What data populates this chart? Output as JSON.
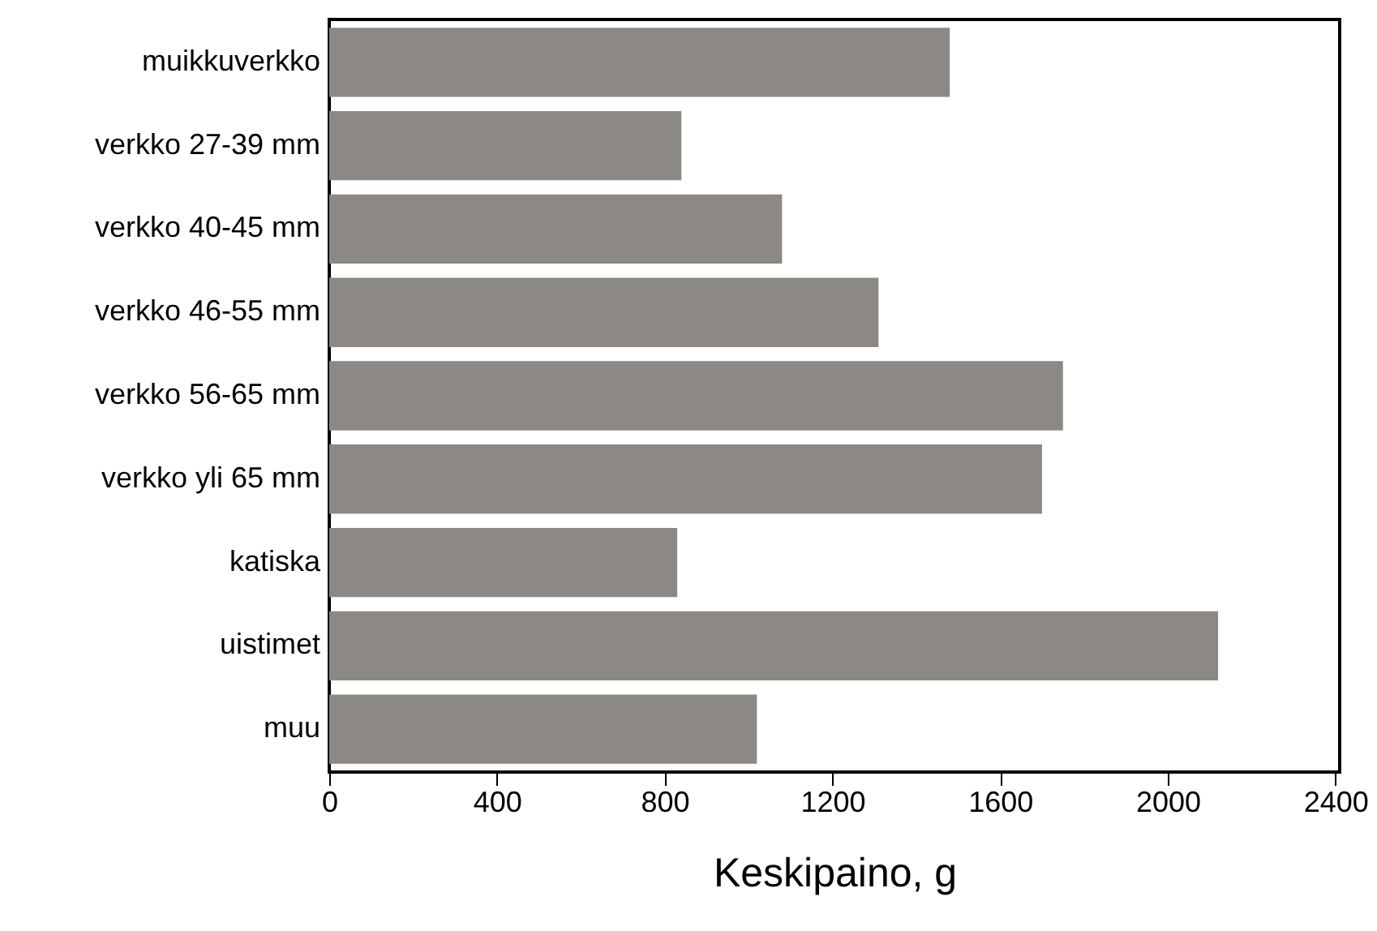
{
  "chart_data": {
    "type": "bar",
    "orientation": "horizontal",
    "xlabel": "Keskipaino, g",
    "categories": [
      "muikkuverkko",
      "verkko 27-39 mm",
      "verkko 40-45 mm",
      "verkko 46-55 mm",
      "verkko 56-65 mm",
      "verkko yli 65 mm",
      "katiska",
      "uistimet",
      "muu"
    ],
    "values": [
      1480,
      840,
      1080,
      1310,
      1750,
      1700,
      830,
      2120,
      1020
    ],
    "color": "#8c8984",
    "xlim": [
      0,
      2410
    ],
    "xticks": [
      0,
      400,
      800,
      1200,
      1600,
      2000,
      2400
    ],
    "grid": false
  }
}
